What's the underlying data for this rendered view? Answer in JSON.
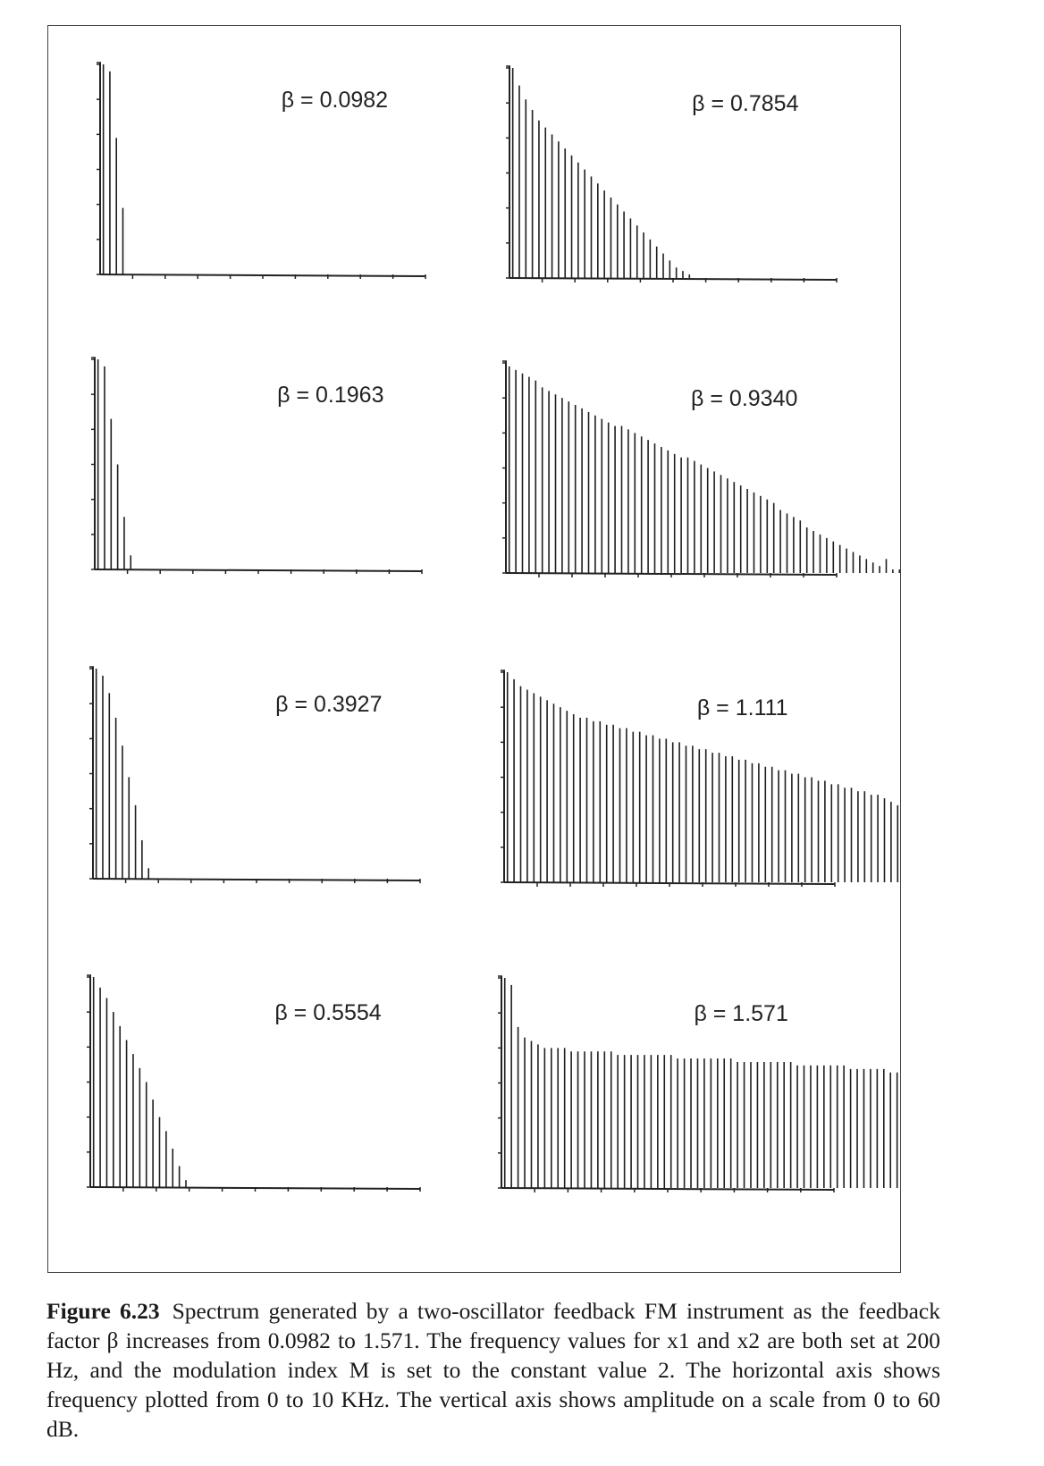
{
  "figure": {
    "label": "Figure 6.23",
    "caption": "Spectrum generated by a two-oscillator feedback FM instrument as the feedback factor β increases from 0.0982 to 1.571. The frequency values for x1 and x2 are both set at 200 Hz, and the modulation index M is set to the constant value 2. The horizontal axis shows frequency plotted from 0 to 10 KHz. The vertical axis shows amplitude on a scale from 0 to 60 dB."
  },
  "chart_data": [
    {
      "type": "bar",
      "title": "β = 0.0982",
      "xlim": [
        0,
        10000
      ],
      "ylim": [
        0,
        60
      ],
      "x_unit": "Hz",
      "y_unit": "dB",
      "harmonic_spacing_hz": 200,
      "values": [
        60,
        58,
        39,
        19
      ]
    },
    {
      "type": "bar",
      "title": "β = 0.1963",
      "xlim": [
        0,
        10000
      ],
      "ylim": [
        0,
        60
      ],
      "x_unit": "Hz",
      "y_unit": "dB",
      "harmonic_spacing_hz": 200,
      "values": [
        60,
        58,
        43,
        30,
        15,
        4
      ]
    },
    {
      "type": "bar",
      "title": "β = 0.3927",
      "xlim": [
        0,
        10000
      ],
      "ylim": [
        0,
        60
      ],
      "x_unit": "Hz",
      "y_unit": "dB",
      "harmonic_spacing_hz": 200,
      "values": [
        60,
        58,
        53,
        46,
        38,
        29,
        21,
        11,
        3
      ]
    },
    {
      "type": "bar",
      "title": "β = 0.5554",
      "xlim": [
        0,
        10000
      ],
      "ylim": [
        0,
        60
      ],
      "x_unit": "Hz",
      "y_unit": "dB",
      "harmonic_spacing_hz": 200,
      "values": [
        60,
        57,
        54,
        50,
        46,
        42,
        38,
        34,
        30,
        25,
        20,
        16,
        11,
        6,
        2
      ]
    },
    {
      "type": "bar",
      "title": "β = 0.7854",
      "xlim": [
        0,
        10000
      ],
      "ylim": [
        0,
        60
      ],
      "x_unit": "Hz",
      "y_unit": "dB",
      "harmonic_spacing_hz": 200,
      "values": [
        60,
        55,
        51,
        48,
        45,
        43,
        41,
        39,
        37,
        35,
        33,
        31,
        29,
        27,
        25,
        23,
        21,
        19,
        17,
        15,
        13,
        11,
        9,
        7,
        5,
        3,
        2,
        1
      ]
    },
    {
      "type": "bar",
      "title": "β = 0.9340",
      "xlim": [
        0,
        10000
      ],
      "ylim": [
        0,
        60
      ],
      "x_unit": "Hz",
      "y_unit": "dB",
      "harmonic_spacing_hz": 200,
      "values": [
        59,
        58,
        57,
        56,
        55,
        53,
        52,
        51,
        50,
        49,
        48,
        47,
        46,
        45,
        44,
        43,
        42,
        42,
        41,
        40,
        39,
        38,
        37,
        36,
        35,
        34,
        33,
        33,
        32,
        31,
        30,
        29,
        28,
        27,
        26,
        25,
        24,
        23,
        22,
        21,
        20,
        18,
        17,
        16,
        15,
        13,
        12,
        11,
        10,
        9,
        8,
        7,
        6,
        5,
        4,
        3,
        2,
        4,
        1,
        1
      ]
    },
    {
      "type": "bar",
      "title": "β = 1.111",
      "xlim": [
        0,
        10000
      ],
      "ylim": [
        0,
        60
      ],
      "x_unit": "Hz",
      "y_unit": "dB",
      "harmonic_spacing_hz": 200,
      "values": [
        60,
        58,
        56,
        55,
        54,
        53,
        52,
        51,
        50,
        49,
        48,
        47,
        47,
        46,
        46,
        45,
        45,
        44,
        44,
        43,
        43,
        42,
        42,
        41,
        41,
        40,
        40,
        39,
        39,
        38,
        38,
        37,
        37,
        36,
        36,
        35,
        35,
        34,
        34,
        33,
        33,
        32,
        32,
        31,
        31,
        30,
        30,
        29,
        29,
        28,
        28,
        27,
        27,
        26,
        26,
        25,
        25,
        24,
        23,
        22
      ]
    },
    {
      "type": "bar",
      "title": "β = 1.571",
      "xlim": [
        0,
        10000
      ],
      "ylim": [
        0,
        60
      ],
      "x_unit": "Hz",
      "y_unit": "dB",
      "harmonic_spacing_hz": 200,
      "values": [
        60,
        58,
        46,
        43,
        42,
        41,
        40,
        40,
        40,
        40,
        39,
        39,
        39,
        39,
        39,
        39,
        39,
        38,
        38,
        38,
        38,
        38,
        38,
        38,
        38,
        38,
        37,
        37,
        37,
        37,
        37,
        37,
        37,
        37,
        37,
        36,
        36,
        36,
        36,
        36,
        36,
        36,
        36,
        36,
        35,
        35,
        35,
        35,
        35,
        35,
        35,
        35,
        34,
        34,
        34,
        34,
        34,
        34,
        33,
        33
      ]
    }
  ]
}
